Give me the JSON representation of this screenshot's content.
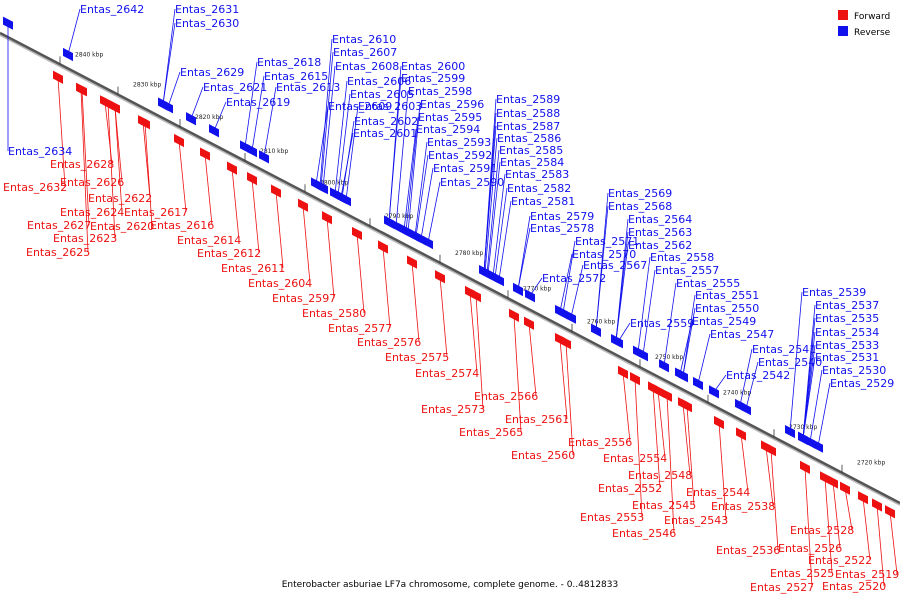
{
  "legend": {
    "forward_label": "Forward",
    "reverse_label": "Reverse",
    "forward_color": "#ee1111",
    "reverse_color": "#1111ee"
  },
  "caption": "Enterobacter asburiae LF7a chromosome, complete genome. - 0..4812833",
  "ticks": [
    "2840 kbp",
    "2830 kbp",
    "2820 kbp",
    "2810 kbp",
    "2800 kbp",
    "2790 kbp",
    "2780 kbp",
    "2770 kbp",
    "2760 kbp",
    "2750 kbp",
    "2740 kbp",
    "2730 kbp",
    "2720 kbp"
  ],
  "genes": [
    {
      "name": "Entas_2642",
      "strand": "reverse"
    },
    {
      "name": "Entas_2631",
      "strand": "reverse"
    },
    {
      "name": "Entas_2630",
      "strand": "reverse"
    },
    {
      "name": "Entas_2629",
      "strand": "reverse"
    },
    {
      "name": "Entas_2621",
      "strand": "reverse"
    },
    {
      "name": "Entas_2619",
      "strand": "reverse"
    },
    {
      "name": "Entas_2618",
      "strand": "reverse"
    },
    {
      "name": "Entas_2615",
      "strand": "reverse"
    },
    {
      "name": "Entas_2613",
      "strand": "reverse"
    },
    {
      "name": "Entas_2610",
      "strand": "reverse"
    },
    {
      "name": "Entas_2607",
      "strand": "reverse"
    },
    {
      "name": "Entas_2608",
      "strand": "reverse"
    },
    {
      "name": "Entas_2606",
      "strand": "reverse"
    },
    {
      "name": "Entas_2605",
      "strand": "reverse"
    },
    {
      "name": "Entas_2609",
      "strand": "reverse"
    },
    {
      "name": "Entas_2603",
      "strand": "reverse"
    },
    {
      "name": "Entas_2602",
      "strand": "reverse"
    },
    {
      "name": "Entas_2601",
      "strand": "reverse"
    },
    {
      "name": "Entas_2600",
      "strand": "reverse"
    },
    {
      "name": "Entas_2599",
      "strand": "reverse"
    },
    {
      "name": "Entas_2598",
      "strand": "reverse"
    },
    {
      "name": "Entas_2596",
      "strand": "reverse"
    },
    {
      "name": "Entas_2595",
      "strand": "reverse"
    },
    {
      "name": "Entas_2594",
      "strand": "reverse"
    },
    {
      "name": "Entas_2593",
      "strand": "reverse"
    },
    {
      "name": "Entas_2592",
      "strand": "reverse"
    },
    {
      "name": "Entas_2591",
      "strand": "reverse"
    },
    {
      "name": "Entas_2590",
      "strand": "reverse"
    },
    {
      "name": "Entas_2589",
      "strand": "reverse"
    },
    {
      "name": "Entas_2588",
      "strand": "reverse"
    },
    {
      "name": "Entas_2587",
      "strand": "reverse"
    },
    {
      "name": "Entas_2586",
      "strand": "reverse"
    },
    {
      "name": "Entas_2585",
      "strand": "reverse"
    },
    {
      "name": "Entas_2584",
      "strand": "reverse"
    },
    {
      "name": "Entas_2583",
      "strand": "reverse"
    },
    {
      "name": "Entas_2582",
      "strand": "reverse"
    },
    {
      "name": "Entas_2581",
      "strand": "reverse"
    },
    {
      "name": "Entas_2579",
      "strand": "reverse"
    },
    {
      "name": "Entas_2578",
      "strand": "reverse"
    },
    {
      "name": "Entas_2572",
      "strand": "reverse"
    },
    {
      "name": "Entas_2571",
      "strand": "reverse"
    },
    {
      "name": "Entas_2570",
      "strand": "reverse"
    },
    {
      "name": "Entas_2569",
      "strand": "reverse"
    },
    {
      "name": "Entas_2568",
      "strand": "reverse"
    },
    {
      "name": "Entas_2567",
      "strand": "reverse"
    },
    {
      "name": "Entas_2564",
      "strand": "reverse"
    },
    {
      "name": "Entas_2563",
      "strand": "reverse"
    },
    {
      "name": "Entas_2562",
      "strand": "reverse"
    },
    {
      "name": "Entas_2559",
      "strand": "reverse"
    },
    {
      "name": "Entas_2558",
      "strand": "reverse"
    },
    {
      "name": "Entas_2557",
      "strand": "reverse"
    },
    {
      "name": "Entas_2555",
      "strand": "reverse"
    },
    {
      "name": "Entas_2551",
      "strand": "reverse"
    },
    {
      "name": "Entas_2550",
      "strand": "reverse"
    },
    {
      "name": "Entas_2549",
      "strand": "reverse"
    },
    {
      "name": "Entas_2547",
      "strand": "reverse"
    },
    {
      "name": "Entas_2542",
      "strand": "reverse"
    },
    {
      "name": "Entas_2541",
      "strand": "reverse"
    },
    {
      "name": "Entas_2540",
      "strand": "reverse"
    },
    {
      "name": "Entas_2539",
      "strand": "reverse"
    },
    {
      "name": "Entas_2537",
      "strand": "reverse"
    },
    {
      "name": "Entas_2535",
      "strand": "reverse"
    },
    {
      "name": "Entas_2534",
      "strand": "reverse"
    },
    {
      "name": "Entas_2533",
      "strand": "reverse"
    },
    {
      "name": "Entas_2531",
      "strand": "reverse"
    },
    {
      "name": "Entas_2530",
      "strand": "reverse"
    },
    {
      "name": "Entas_2529",
      "strand": "reverse"
    },
    {
      "name": "Entas_2634",
      "strand": "reverse"
    },
    {
      "name": "Entas_2628",
      "strand": "forward"
    },
    {
      "name": "Entas_2632",
      "strand": "forward"
    },
    {
      "name": "Entas_2626",
      "strand": "forward"
    },
    {
      "name": "Entas_2622",
      "strand": "forward"
    },
    {
      "name": "Entas_2624",
      "strand": "forward"
    },
    {
      "name": "Entas_2617",
      "strand": "forward"
    },
    {
      "name": "Entas_2627",
      "strand": "forward"
    },
    {
      "name": "Entas_2620",
      "strand": "forward"
    },
    {
      "name": "Entas_2616",
      "strand": "forward"
    },
    {
      "name": "Entas_2623",
      "strand": "forward"
    },
    {
      "name": "Entas_2614",
      "strand": "forward"
    },
    {
      "name": "Entas_2625",
      "strand": "forward"
    },
    {
      "name": "Entas_2612",
      "strand": "forward"
    },
    {
      "name": "Entas_2611",
      "strand": "forward"
    },
    {
      "name": "Entas_2604",
      "strand": "forward"
    },
    {
      "name": "Entas_2597",
      "strand": "forward"
    },
    {
      "name": "Entas_2580",
      "strand": "forward"
    },
    {
      "name": "Entas_2577",
      "strand": "forward"
    },
    {
      "name": "Entas_2576",
      "strand": "forward"
    },
    {
      "name": "Entas_2575",
      "strand": "forward"
    },
    {
      "name": "Entas_2574",
      "strand": "forward"
    },
    {
      "name": "Entas_2566",
      "strand": "forward"
    },
    {
      "name": "Entas_2573",
      "strand": "forward"
    },
    {
      "name": "Entas_2561",
      "strand": "forward"
    },
    {
      "name": "Entas_2565",
      "strand": "forward"
    },
    {
      "name": "Entas_2556",
      "strand": "forward"
    },
    {
      "name": "Entas_2560",
      "strand": "forward"
    },
    {
      "name": "Entas_2554",
      "strand": "forward"
    },
    {
      "name": "Entas_2548",
      "strand": "forward"
    },
    {
      "name": "Entas_2552",
      "strand": "forward"
    },
    {
      "name": "Entas_2544",
      "strand": "forward"
    },
    {
      "name": "Entas_2545",
      "strand": "forward"
    },
    {
      "name": "Entas_2553",
      "strand": "forward"
    },
    {
      "name": "Entas_2543",
      "strand": "forward"
    },
    {
      "name": "Entas_2546",
      "strand": "forward"
    },
    {
      "name": "Entas_2538",
      "strand": "forward"
    },
    {
      "name": "Entas_2528",
      "strand": "forward"
    },
    {
      "name": "Entas_2536",
      "strand": "forward"
    },
    {
      "name": "Entas_2526",
      "strand": "forward"
    },
    {
      "name": "Entas_2522",
      "strand": "forward"
    },
    {
      "name": "Entas_2525",
      "strand": "forward"
    },
    {
      "name": "Entas_2519",
      "strand": "forward"
    },
    {
      "name": "Entas_2527",
      "strand": "forward"
    },
    {
      "name": "Entas_2520",
      "strand": "forward"
    }
  ]
}
